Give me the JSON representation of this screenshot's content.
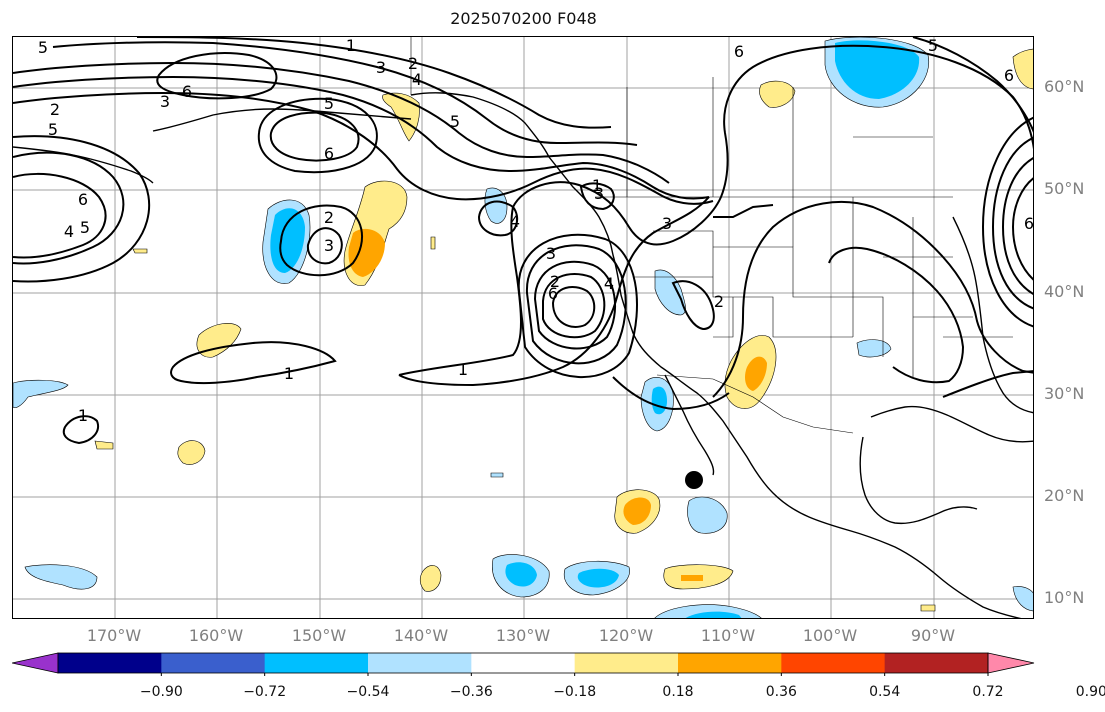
{
  "title": "2025070200 F048",
  "lat_labels": [
    "60°N",
    "50°N",
    "40°N",
    "30°N",
    "20°N",
    "10°N"
  ],
  "lon_labels": [
    "170°W",
    "160°W",
    "150°W",
    "140°W",
    "130°W",
    "120°W",
    "110°W",
    "100°W",
    "90°W"
  ],
  "contour_labels": [
    "5",
    "1",
    "3",
    "2",
    "4",
    "5",
    "3",
    "2",
    "5",
    "6",
    "6",
    "5",
    "6",
    "4",
    "5",
    "2",
    "3",
    "4",
    "3",
    "3",
    "2",
    "6",
    "1",
    "1",
    "1",
    "2",
    "4",
    "3",
    "1",
    "6",
    "6",
    "5",
    "6"
  ],
  "colorbar": {
    "ticks": [
      "−0.90",
      "−0.72",
      "−0.54",
      "−0.36",
      "−0.18",
      "0.18",
      "0.36",
      "0.54",
      "0.72",
      "0.90"
    ],
    "colors": [
      "#9932cc",
      "#00008b",
      "#3a5fcd",
      "#00bfff",
      "#b0e2ff",
      "#ffffff",
      "#ffec8b",
      "#ffa500",
      "#ff4500",
      "#b22222",
      "#ff88aa"
    ]
  },
  "colors": {
    "contour": "#000000",
    "grid": "#a0a0a0",
    "coast": "#000000",
    "axis_label": "#808080"
  },
  "marker": "black-dot"
}
